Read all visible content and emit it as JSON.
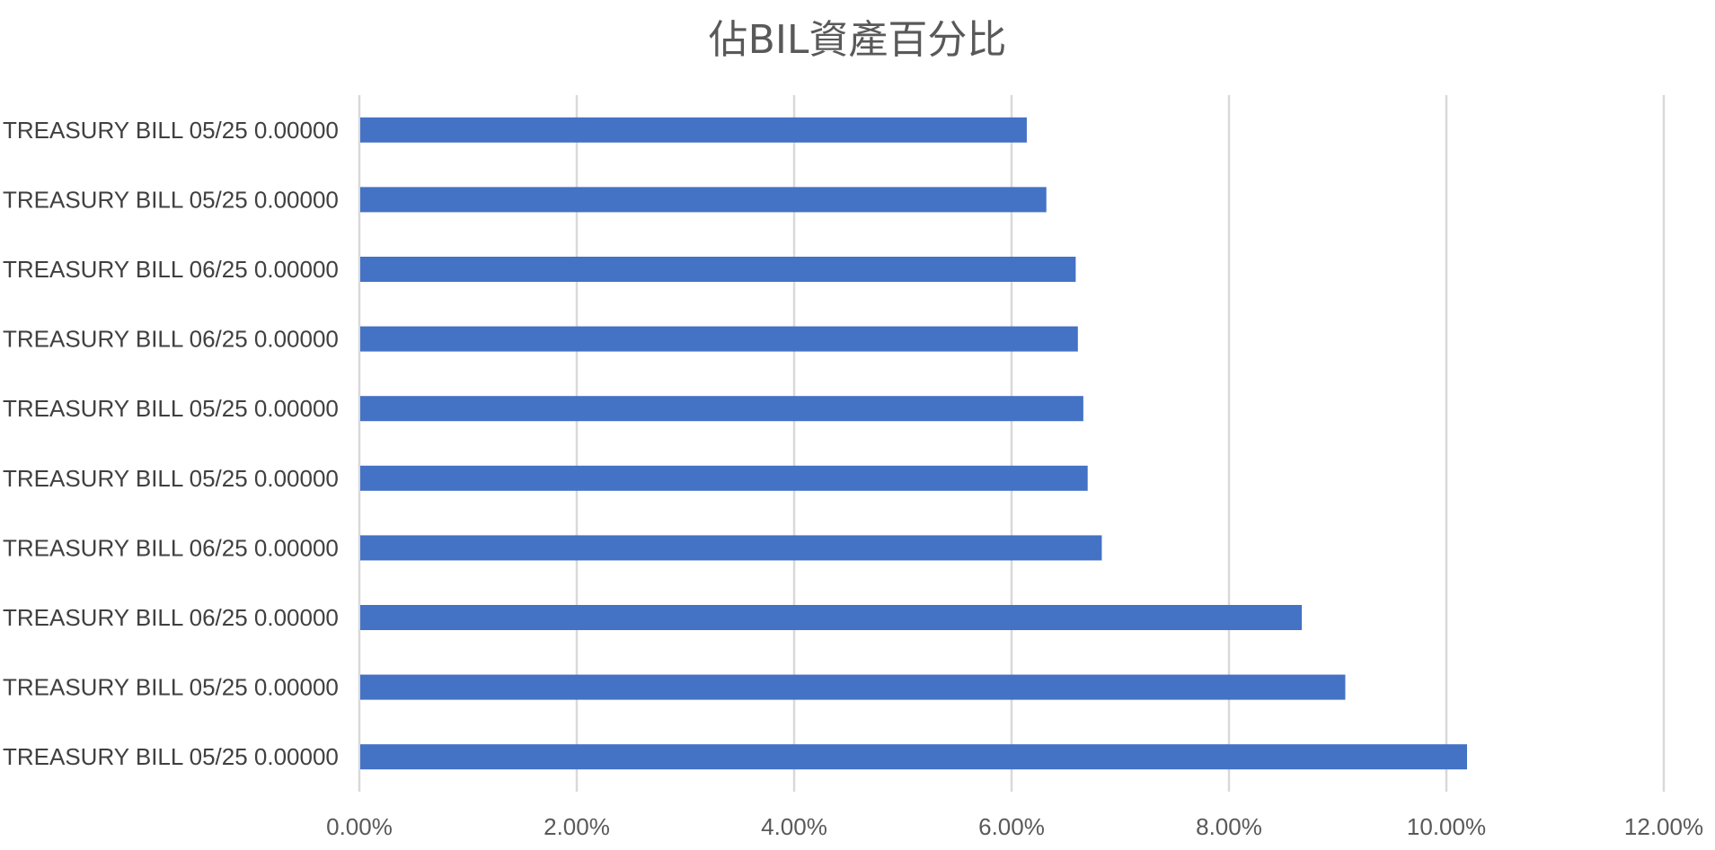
{
  "chart_data": {
    "type": "bar",
    "orientation": "horizontal",
    "title": "佔BIL資產百分比",
    "categories": [
      "TREASURY BILL 05/25 0.00000",
      "TREASURY BILL 05/25 0.00000",
      "TREASURY BILL 06/25 0.00000",
      "TREASURY BILL 06/25 0.00000",
      "TREASURY BILL 05/25 0.00000",
      "TREASURY BILL 05/25 0.00000",
      "TREASURY BILL 06/25 0.00000",
      "TREASURY BILL 06/25 0.00000",
      "TREASURY BILL 05/25 0.00000",
      "TREASURY BILL 05/25 0.00000"
    ],
    "values": [
      6.14,
      6.32,
      6.59,
      6.61,
      6.66,
      6.7,
      6.83,
      8.67,
      9.07,
      10.19
    ],
    "xlim": [
      0,
      12
    ],
    "xticks": [
      "0.00%",
      "2.00%",
      "4.00%",
      "6.00%",
      "8.00%",
      "10.00%",
      "12.00%"
    ],
    "bar_color": "#4472c4",
    "grid": true,
    "legend": "none"
  }
}
